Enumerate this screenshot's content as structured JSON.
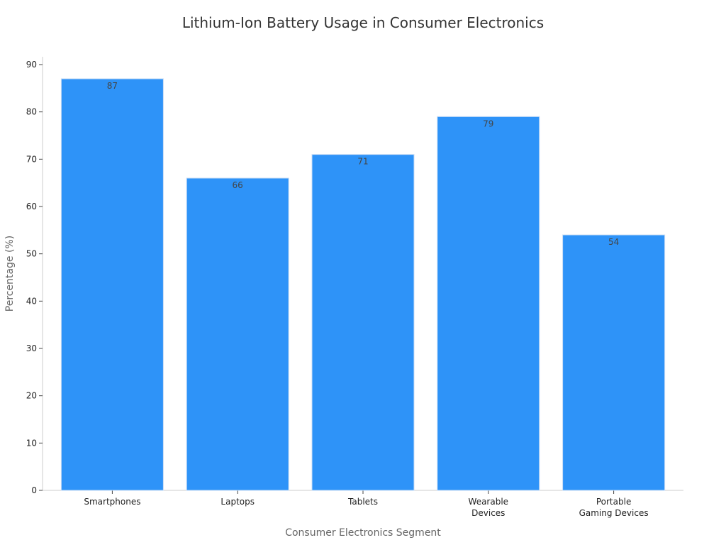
{
  "chart_data": {
    "type": "bar",
    "title": "Lithium-Ion Battery Usage in Consumer Electronics",
    "xlabel": "Consumer Electronics Segment",
    "ylabel": "Percentage (%)",
    "categories": [
      "Smartphones",
      "Laptops",
      "Tablets",
      "Wearable\nDevices",
      "Portable\nGaming Devices"
    ],
    "values": [
      87,
      66,
      71,
      79,
      54
    ],
    "ylim": [
      0,
      90
    ],
    "yticks": [
      0,
      10,
      20,
      30,
      40,
      50,
      60,
      70,
      80,
      90
    ],
    "grid": false,
    "legend": "none",
    "colors": {
      "bar": "#2E93F8",
      "bar_edge": "#C8DCF5",
      "axis": "#CCCCCC"
    }
  }
}
